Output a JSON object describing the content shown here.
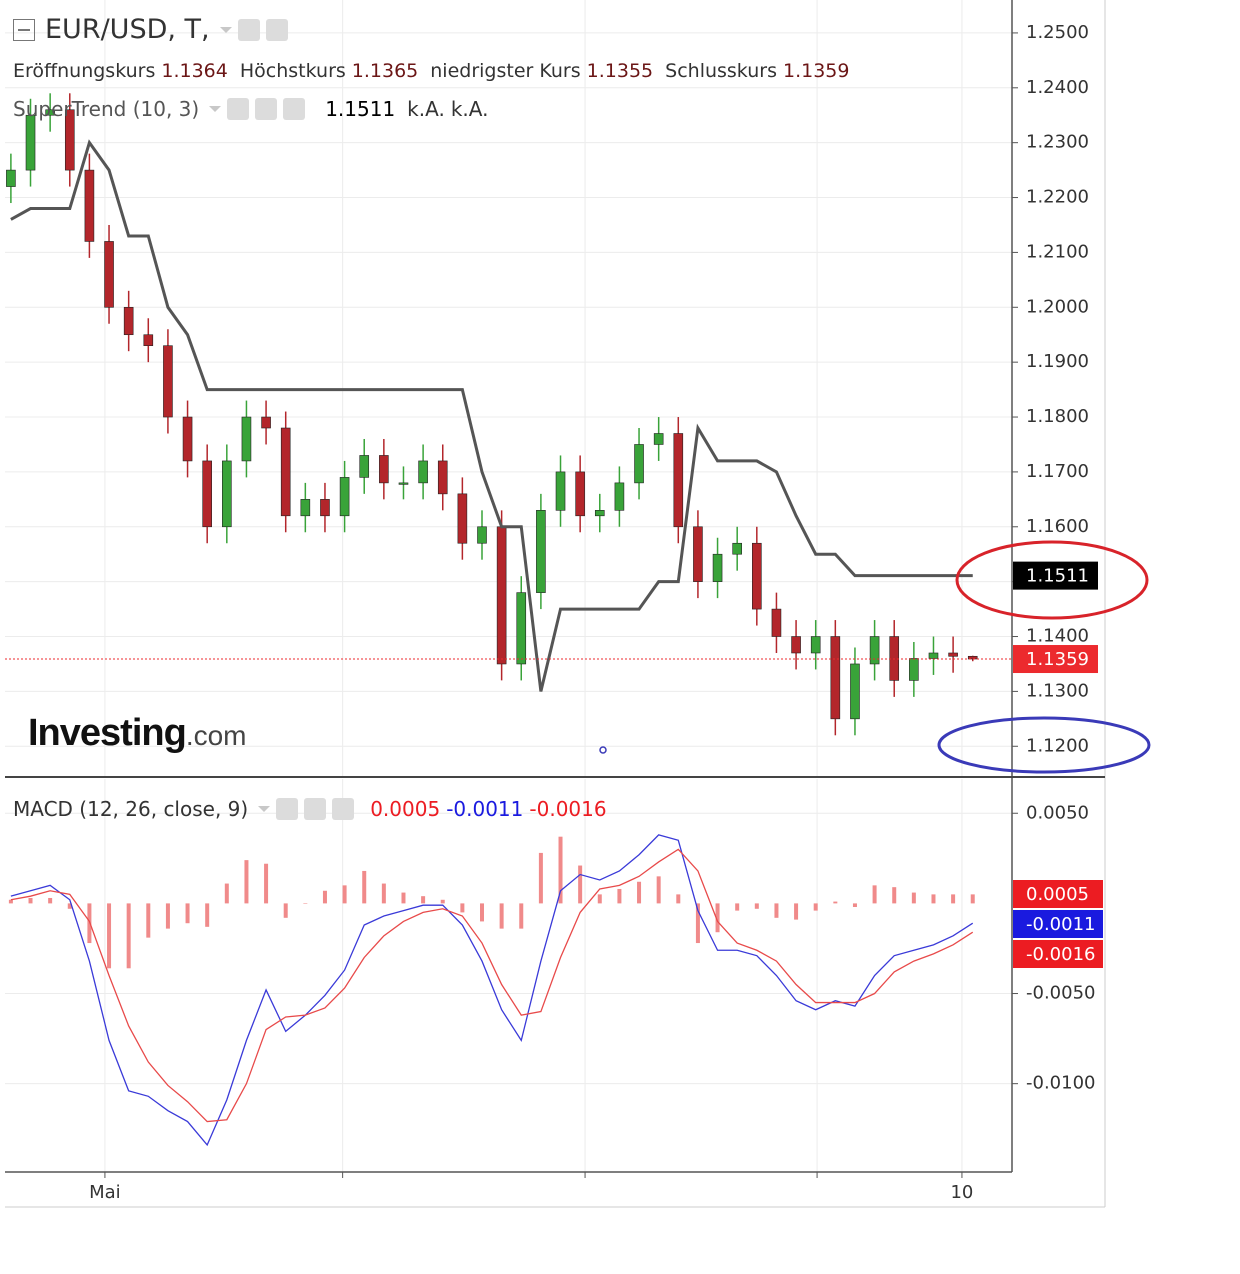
{
  "chart_data": [
    {
      "type": "candlestick",
      "title": "EUR/USD, T,",
      "ohlc_labels": [
        "Eröffnungskurs",
        "Höchstkurs",
        "niedrigster Kurs",
        "Schlusskurs"
      ],
      "open": [
        1.222,
        1.225,
        1.235,
        1.236,
        1.225,
        1.212,
        1.2,
        1.195,
        1.193,
        1.18,
        1.172,
        1.16,
        1.172,
        1.18,
        1.178,
        1.162,
        1.165,
        1.162,
        1.169,
        1.173,
        1.168,
        1.168,
        1.172,
        1.166,
        1.157,
        1.16,
        1.135,
        1.148,
        1.163,
        1.17,
        1.162,
        1.163,
        1.168,
        1.175,
        1.177,
        1.16,
        1.15,
        1.155,
        1.157,
        1.145,
        1.14,
        1.137,
        1.14,
        1.125,
        1.135,
        1.14,
        1.132,
        1.136,
        1.137,
        1.1364
      ],
      "high": [
        1.228,
        1.238,
        1.239,
        1.239,
        1.228,
        1.215,
        1.203,
        1.198,
        1.196,
        1.183,
        1.175,
        1.175,
        1.183,
        1.183,
        1.181,
        1.168,
        1.168,
        1.172,
        1.176,
        1.176,
        1.171,
        1.175,
        1.175,
        1.169,
        1.163,
        1.163,
        1.151,
        1.166,
        1.173,
        1.173,
        1.166,
        1.171,
        1.178,
        1.18,
        1.18,
        1.163,
        1.158,
        1.16,
        1.16,
        1.148,
        1.143,
        1.143,
        1.143,
        1.138,
        1.143,
        1.143,
        1.139,
        1.14,
        1.14,
        1.1365
      ],
      "low": [
        1.219,
        1.222,
        1.232,
        1.222,
        1.209,
        1.197,
        1.192,
        1.19,
        1.177,
        1.169,
        1.157,
        1.157,
        1.169,
        1.175,
        1.159,
        1.159,
        1.159,
        1.159,
        1.166,
        1.165,
        1.165,
        1.165,
        1.163,
        1.154,
        1.154,
        1.132,
        1.132,
        1.145,
        1.16,
        1.159,
        1.159,
        1.16,
        1.165,
        1.172,
        1.157,
        1.147,
        1.147,
        1.152,
        1.142,
        1.137,
        1.134,
        1.134,
        1.122,
        1.122,
        1.132,
        1.129,
        1.129,
        1.133,
        1.1334,
        1.1355
      ],
      "close": [
        1.225,
        1.235,
        1.236,
        1.225,
        1.212,
        1.2,
        1.195,
        1.193,
        1.18,
        1.172,
        1.16,
        1.172,
        1.18,
        1.178,
        1.162,
        1.165,
        1.162,
        1.169,
        1.173,
        1.168,
        1.168,
        1.172,
        1.166,
        1.157,
        1.16,
        1.135,
        1.148,
        1.163,
        1.17,
        1.162,
        1.163,
        1.168,
        1.175,
        1.177,
        1.16,
        1.15,
        1.155,
        1.157,
        1.145,
        1.14,
        1.137,
        1.14,
        1.125,
        1.135,
        1.14,
        1.132,
        1.136,
        1.137,
        1.1364,
        1.1359
      ],
      "up_color": "#39a339",
      "down_color": "#b3262b",
      "last_price_color": "#ec2a2e",
      "xlim": [
        -0.3,
        51
      ],
      "ylim": [
        1.1144,
        1.256
      ],
      "yticks": [
        {
          "value": 1.25,
          "label": "1.2500"
        },
        {
          "value": 1.24,
          "label": "1.2400"
        },
        {
          "value": 1.23,
          "label": "1.2300"
        },
        {
          "value": 1.22,
          "label": "1.2200"
        },
        {
          "value": 1.21,
          "label": "1.2100"
        },
        {
          "value": 1.2,
          "label": "1.2000"
        },
        {
          "value": 1.19,
          "label": "1.1900"
        },
        {
          "value": 1.18,
          "label": "1.1800"
        },
        {
          "value": 1.17,
          "label": "1.1700"
        },
        {
          "value": 1.16,
          "label": "1.1600"
        },
        {
          "value": 1.15,
          "label": "1.1500"
        },
        {
          "value": 1.14,
          "label": "1.1400"
        },
        {
          "value": 1.13,
          "label": "1.1300"
        },
        {
          "value": 1.12,
          "label": "1.1200"
        }
      ],
      "grid": true,
      "series": [
        {
          "name": "SuperTrend (10, 3)",
          "color": "#555555",
          "status": [
            "k.A.",
            "k.A."
          ],
          "values": [
            1.216,
            1.218,
            1.218,
            1.218,
            1.23,
            1.225,
            1.213,
            1.213,
            1.2,
            1.195,
            1.185,
            1.185,
            1.185,
            1.185,
            1.185,
            1.185,
            1.185,
            1.185,
            1.185,
            1.185,
            1.185,
            1.185,
            1.185,
            1.185,
            1.17,
            1.16,
            1.16,
            1.13,
            1.145,
            1.145,
            1.145,
            1.145,
            1.145,
            1.15,
            1.15,
            1.178,
            1.172,
            1.172,
            1.172,
            1.17,
            1.162,
            1.155,
            1.155,
            1.1511,
            1.1511,
            1.1511,
            1.1511,
            1.1511,
            1.1511,
            1.1511
          ]
        }
      ]
    },
    {
      "type": "macd",
      "title": "MACD (12, 26, close, 9)",
      "xlim": [
        -0.3,
        51
      ],
      "ylim": [
        -0.0149,
        0.0069
      ],
      "yticks": [
        {
          "value": 0.005,
          "label": "0.0050"
        },
        {
          "value": -0.005,
          "label": "-0.0050"
        },
        {
          "value": -0.01,
          "label": "-0.0100"
        }
      ],
      "xticks": [
        {
          "value": 4.79,
          "label": "Mai"
        },
        {
          "value": 16.9,
          "label": null
        },
        {
          "value": 29.25,
          "label": null
        },
        {
          "value": 41.07,
          "label": null
        },
        {
          "value": 48.45,
          "label": "10"
        }
      ],
      "grid": true,
      "series": [
        {
          "type": "histogram",
          "color": "#f08a8a",
          "tag_color": "#ec1c22",
          "values": [
            0.0002,
            0.0003,
            0.0003,
            -0.0003,
            -0.0022,
            -0.0036,
            -0.0036,
            -0.0019,
            -0.0014,
            -0.0011,
            -0.0013,
            0.0011,
            0.0024,
            0.0022,
            -0.0008,
            0.0,
            0.0007,
            0.001,
            0.0018,
            0.0011,
            0.0006,
            0.0004,
            0.0002,
            -0.0005,
            -0.001,
            -0.0014,
            -0.0014,
            0.0028,
            0.0037,
            0.0021,
            0.0005,
            0.0008,
            0.0012,
            0.0015,
            0.0005,
            -0.0022,
            -0.0016,
            -0.0004,
            -0.0003,
            -0.0008,
            -0.0009,
            -0.0004,
            0.0001,
            -0.0002,
            0.001,
            0.0009,
            0.0006,
            0.0005,
            0.0005,
            0.0005
          ]
        },
        {
          "type": "line",
          "color": "#3a3ad8",
          "tag_color": "#1a1adf",
          "values": [
            0.0004,
            0.0007,
            0.001,
            0.0002,
            -0.0032,
            -0.0076,
            -0.0104,
            -0.0107,
            -0.0115,
            -0.0121,
            -0.0134,
            -0.0109,
            -0.0076,
            -0.0048,
            -0.0071,
            -0.0062,
            -0.0051,
            -0.0037,
            -0.0012,
            -0.0007,
            -0.0004,
            -0.0001,
            -0.0001,
            -0.0012,
            -0.0032,
            -0.0059,
            -0.0076,
            -0.0032,
            0.0007,
            0.0016,
            0.0013,
            0.0018,
            0.0027,
            0.0038,
            0.0035,
            -0.0004,
            -0.0026,
            -0.0026,
            -0.0029,
            -0.004,
            -0.0054,
            -0.0059,
            -0.0054,
            -0.0057,
            -0.004,
            -0.0029,
            -0.0026,
            -0.0023,
            -0.0018,
            -0.0011
          ]
        },
        {
          "type": "line",
          "color": "#e84a4a",
          "tag_color": "#ec1c22",
          "values": [
            0.0002,
            0.0004,
            0.0007,
            0.0005,
            -0.001,
            -0.004,
            -0.0068,
            -0.0088,
            -0.0101,
            -0.011,
            -0.0121,
            -0.012,
            -0.01,
            -0.007,
            -0.0063,
            -0.0062,
            -0.0058,
            -0.0047,
            -0.003,
            -0.0018,
            -0.001,
            -0.0005,
            -0.0003,
            -0.0007,
            -0.0022,
            -0.0045,
            -0.0062,
            -0.006,
            -0.003,
            -0.0005,
            0.0008,
            0.001,
            0.0015,
            0.0023,
            0.003,
            0.0018,
            -0.001,
            -0.0022,
            -0.0026,
            -0.0032,
            -0.0045,
            -0.0055,
            -0.0055,
            -0.0055,
            -0.005,
            -0.0038,
            -0.0032,
            -0.0028,
            -0.0023,
            -0.0016
          ]
        }
      ]
    }
  ],
  "watermark": {
    "brand": "Investing",
    "suffix": ".com"
  }
}
